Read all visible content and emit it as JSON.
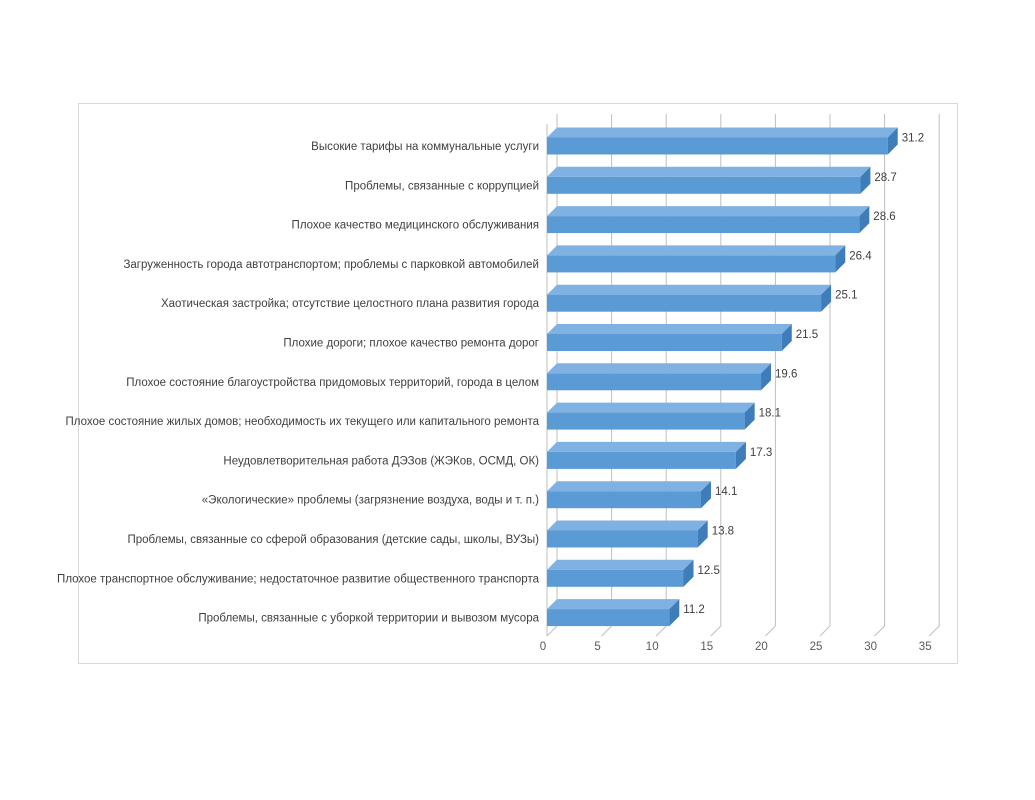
{
  "chart_data": {
    "type": "bar",
    "orientation": "horizontal",
    "style": "3d-clustered-bar",
    "categories": [
      "Высокие тарифы на коммунальные услуги",
      "Проблемы, связанные с коррупцией",
      "Плохое качество медицинского обслуживания",
      "Загруженность города автотранспортом; проблемы с парковкой автомобилей",
      "Хаотическая застройка; отсутствие целостного плана развития города",
      "Плохие дороги; плохое качество ремонта дорог",
      "Плохое состояние благоустройства придомовых территорий, города в целом",
      "Плохое состояние жилых домов; необходимость их текущего или капитального ремонта",
      "Неудовлетворительная работа ДЭЗов (ЖЭКов, ОСМД, ОК)",
      "«Экологические» проблемы (загрязнение воздуха, воды и т. п.)",
      "Проблемы, связанные со сферой образования (детские сады, школы, ВУЗы)",
      "Плохое транспортное обслуживание; недостаточное развитие общественного транспорта",
      "Проблемы, связанные с уборкой территории и вывозом мусора"
    ],
    "values": [
      31.2,
      28.7,
      28.6,
      26.4,
      25.1,
      21.5,
      19.6,
      18.1,
      17.3,
      14.1,
      13.8,
      12.5,
      11.2
    ],
    "value_labels": [
      "31.2",
      "28.7",
      "28.6",
      "26.4",
      "25.1",
      "21.5",
      "19.6",
      "18.1",
      "17.3",
      "14.1",
      "13.8",
      "12.5",
      "11.2"
    ],
    "xlim": [
      0,
      35
    ],
    "x_ticks": [
      "0",
      "5",
      "10",
      "15",
      "20",
      "25",
      "30",
      "35"
    ],
    "grid": true,
    "legend": "none",
    "colors": {
      "bar_front": "#5b9bd5",
      "bar_top": "#7fb2e3",
      "bar_side": "#3f7cba",
      "grid": "#bfbfbf",
      "frame": "#d9d9d9"
    }
  }
}
